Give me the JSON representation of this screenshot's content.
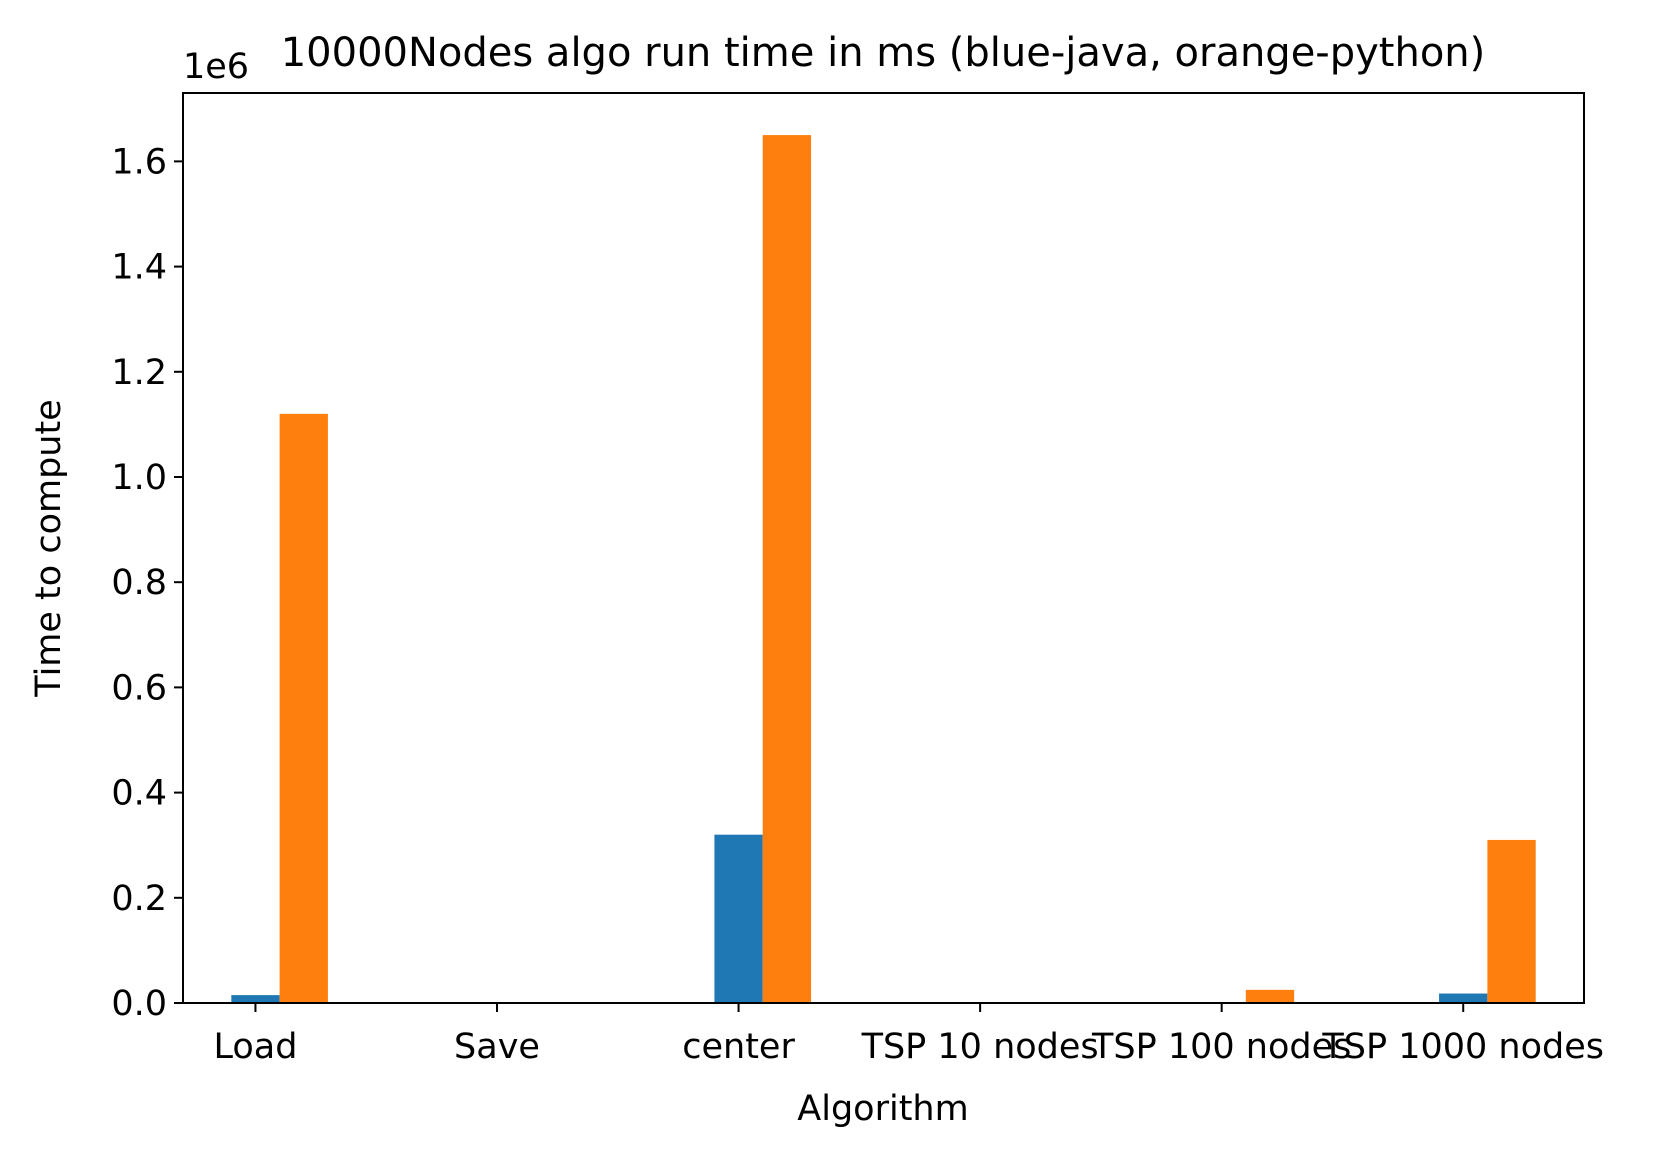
{
  "chart_data": {
    "type": "bar",
    "title": "10000Nodes algo run time in ms (blue-java, orange-python)",
    "xlabel": "Algorithm",
    "ylabel": "Time to compute",
    "y_offset_label": "1e6",
    "categories": [
      "Load",
      "Save",
      "center",
      "TSP 10 nodes",
      "TSP 100 nodes",
      "TSP 1000 nodes"
    ],
    "series": [
      {
        "color": "#1f77b4",
        "values": [
          15000,
          0,
          320000,
          0,
          0,
          18000
        ]
      },
      {
        "color": "#ff7f0e",
        "values": [
          1120000,
          0,
          1650000,
          0,
          25000,
          310000
        ]
      }
    ],
    "ylim": [
      0,
      1730000
    ],
    "yticks": [
      0,
      200000,
      400000,
      600000,
      800000,
      1000000,
      1200000,
      1400000,
      1600000
    ],
    "ytick_labels": [
      "0.0",
      "0.2",
      "0.4",
      "0.6",
      "0.8",
      "1.0",
      "1.2",
      "1.4",
      "1.6"
    ],
    "grid": false,
    "legend": false
  }
}
